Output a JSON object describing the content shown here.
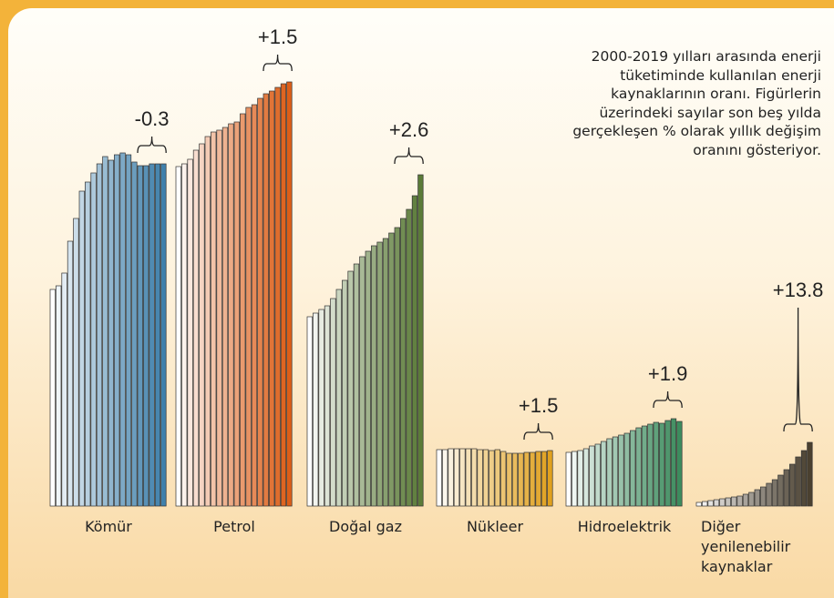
{
  "chart_data": {
    "type": "bar",
    "note": [
      "2000-2019 yılları arasında enerji",
      "tüketiminde kullanılan enerji",
      "kaynaklarının oranı. Figürlerin",
      "üzerindeki sayılar son beş yılda",
      "gerçekleşen % olarak yıllık değişim",
      "oranını gösteriyor."
    ],
    "series": [
      {
        "name": "Kömür",
        "color": "#3f80ab",
        "change_label": "-0.3",
        "values": [
          238,
          242,
          256,
          291,
          316,
          346,
          356,
          366,
          376,
          384,
          380,
          386,
          388,
          386,
          378,
          374,
          374,
          376,
          376,
          376
        ]
      },
      {
        "name": "Petrol",
        "color": "#dc5e18",
        "change_label": "+1.5",
        "values": [
          373,
          376,
          381,
          391,
          398,
          406,
          411,
          413,
          416,
          420,
          422,
          431,
          438,
          441,
          448,
          453,
          456,
          460,
          464,
          466
        ]
      },
      {
        "name": "Doğal gaz",
        "color": "#5b7b38",
        "change_label": "+2.6",
        "values": [
          208,
          212,
          216,
          220,
          228,
          238,
          248,
          258,
          266,
          274,
          280,
          286,
          290,
          294,
          300,
          306,
          316,
          326,
          341,
          364
        ]
      },
      {
        "name": "Nükleer",
        "color": "#e0a11f",
        "change_label": "+1.5",
        "values": [
          62,
          62,
          63,
          63,
          63,
          63,
          63,
          62,
          62,
          61,
          62,
          60,
          58,
          58,
          58,
          59,
          59,
          60,
          60,
          61
        ]
      },
      {
        "name": "Hidroelektrik",
        "color": "#3d8c5e",
        "change_label": "+1.9",
        "values": [
          59,
          60,
          61,
          63,
          66,
          68,
          71,
          74,
          76,
          78,
          80,
          83,
          86,
          88,
          90,
          92,
          91,
          94,
          96,
          93
        ]
      },
      {
        "name": "Diğer yenilenebilir kaynaklar",
        "color": "#4a4030",
        "change_label": "+13.8",
        "values": [
          4,
          5,
          6,
          7,
          8,
          9,
          10,
          11,
          13,
          15,
          18,
          21,
          25,
          29,
          34,
          40,
          46,
          54,
          61,
          70
        ]
      }
    ]
  }
}
